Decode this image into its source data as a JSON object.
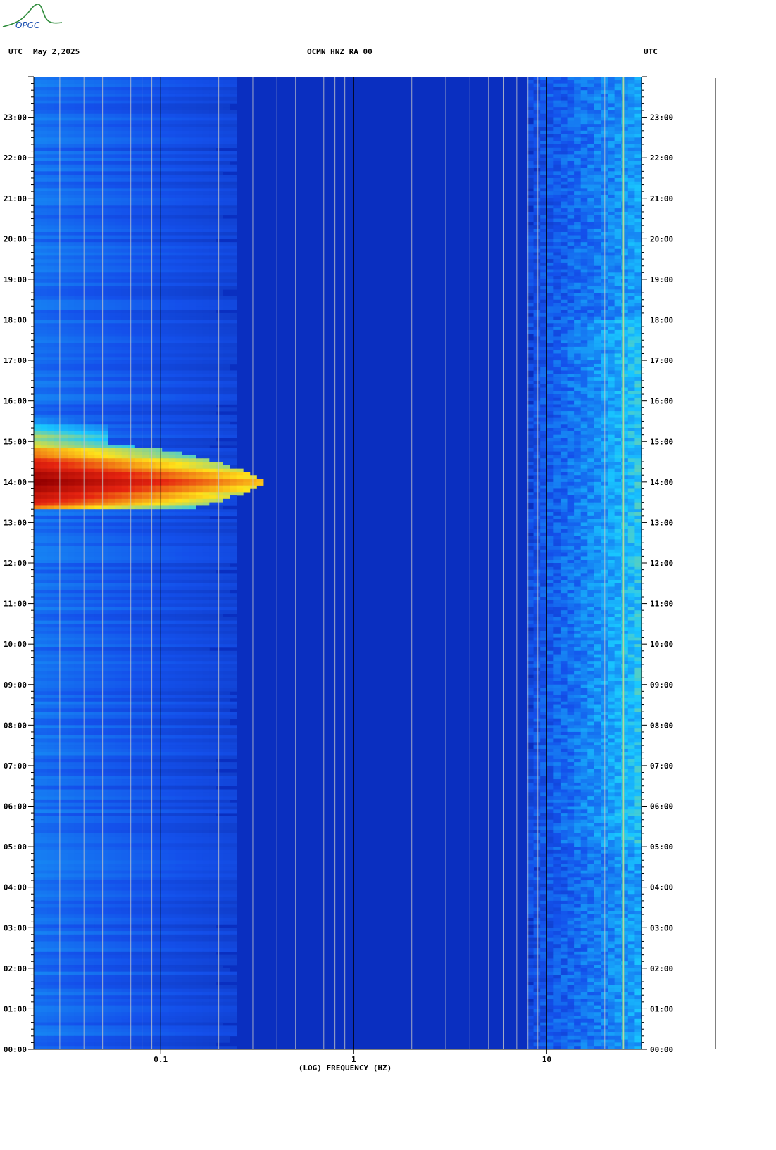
{
  "header": {
    "left_utc": "UTC",
    "date": "May 2,2025",
    "station": "OCMN HNZ RA 00",
    "right_utc": "UTC"
  },
  "logo_text": "OPGC",
  "colors": {
    "background_deep_blue": "#0a2fc0",
    "noise_blue": "#1e5cf0",
    "cyan": "#19d4ff",
    "yellow": "#ffe21a",
    "red": "#e62410",
    "dark_red": "#990000",
    "grid_line": "#c8c8c8",
    "decade_line": "#000000"
  },
  "chart_data": {
    "type": "heatmap",
    "title": "OCMN HNZ RA 00",
    "xlabel": "(LOG) FREQUENCY (HZ)",
    "ylabel": "",
    "x_scale": "log",
    "xlim": [
      0.022,
      31
    ],
    "x_tick_labels": [
      "0.1",
      "1",
      "10"
    ],
    "x_ticks": [
      0.1,
      1,
      10
    ],
    "x_grid_values": [
      0.03,
      0.04,
      0.05,
      0.06,
      0.07,
      0.08,
      0.09,
      0.1,
      0.2,
      0.3,
      0.4,
      0.5,
      0.6,
      0.7,
      0.8,
      0.9,
      1,
      2,
      3,
      4,
      5,
      6,
      7,
      8,
      9,
      10,
      20,
      25
    ],
    "ylim_hours": [
      0,
      24
    ],
    "y_tick_labels": [
      "00:00",
      "01:00",
      "02:00",
      "03:00",
      "04:00",
      "05:00",
      "06:00",
      "07:00",
      "08:00",
      "09:00",
      "10:00",
      "11:00",
      "12:00",
      "13:00",
      "14:00",
      "15:00",
      "16:00",
      "17:00",
      "18:00",
      "19:00",
      "20:00",
      "21:00",
      "22:00",
      "23:00"
    ],
    "color_scale": [
      "deep blue",
      "blue",
      "cyan",
      "yellow",
      "red",
      "dark red"
    ],
    "features": [
      {
        "kind": "low-frequency event",
        "time_start_h": 13.3,
        "time_end_h": 15.1,
        "freq_min_hz": 0.022,
        "freq_max_hz": 0.35,
        "peak_level": 5,
        "peak_time_h": 14.0
      },
      {
        "kind": "high-frequency noise",
        "time_start_h": 0,
        "time_end_h": 24,
        "freq_min_hz": 8,
        "freq_max_hz": 31,
        "peak_level": 2
      },
      {
        "kind": "narrow-band line",
        "freq_hz": 25,
        "time_start_h": 0,
        "time_end_h": 24,
        "peak_level": 3
      }
    ]
  }
}
